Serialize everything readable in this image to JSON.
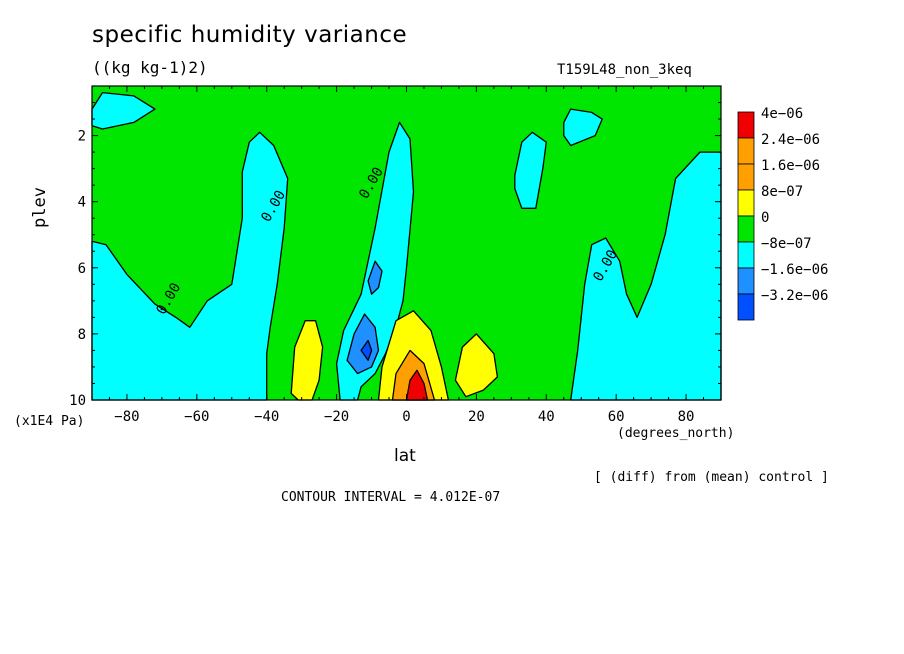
{
  "header": {
    "title": "specific humidity variance",
    "units": "((kg kg-1)2)",
    "run_id": "T159L48_non_3keq"
  },
  "footer": {
    "y_unit": "(x1E4 Pa)",
    "x_unit": "(degrees_north)",
    "diff_note": "[ (diff) from (mean) control ]",
    "contour_interval": "CONTOUR INTERVAL = 4.012E-07"
  },
  "colors": {
    "cyan": "#00ffff",
    "green": "#00e600",
    "yellow": "#ffff00",
    "orange": "#ffa000",
    "red": "#f00000",
    "blue_light": "#1e90ff",
    "blue_dark": "#0050ff"
  },
  "chart_data": {
    "type": "heatmap",
    "title": "specific humidity variance",
    "xlabel": "lat",
    "ylabel": "plev",
    "xlim": [
      -90,
      90
    ],
    "ylim": [
      10,
      0.5
    ],
    "x_ticks": [
      -80,
      -60,
      -40,
      -20,
      0,
      20,
      40,
      60,
      80
    ],
    "x_tick_labels": [
      "-80",
      "-60",
      "-40",
      "-20",
      "0",
      "20",
      "40",
      "60",
      "80"
    ],
    "y_ticks": [
      2,
      4,
      6,
      8,
      10
    ],
    "y_tick_labels": [
      "2",
      "4",
      "6",
      "8",
      "10"
    ],
    "contour_labels": [
      {
        "text": "0.00",
        "lat": -67,
        "plev": 7.0
      },
      {
        "text": "0.00",
        "lat": -37,
        "plev": 4.2
      },
      {
        "text": "0.00",
        "lat": -9,
        "plev": 3.5
      },
      {
        "text": "0.00",
        "lat": 58,
        "plev": 6.0
      }
    ],
    "legend": {
      "labels": [
        "4e-06",
        "2.4e-06",
        "1.6e-06",
        "8e-07",
        "0",
        "-8e-07",
        "-1.6e-06",
        "-3.2e-06"
      ],
      "colors": [
        "#f00000",
        "#ffa000",
        "#ffa000",
        "#ffff00",
        "#00e600",
        "#00ffff",
        "#1e90ff",
        "#0050ff"
      ]
    },
    "regions": [
      {
        "name": "negative-polar-south",
        "level": "cyan",
        "points": [
          [
            -90,
            10
          ],
          [
            -90,
            5.2
          ],
          [
            -86,
            5.3
          ],
          [
            -80,
            6.2
          ],
          [
            -72,
            7.1
          ],
          [
            -66,
            7.5
          ],
          [
            -62,
            7.8
          ],
          [
            -57,
            7.0
          ],
          [
            -50,
            6.5
          ],
          [
            -47,
            4.5
          ],
          [
            -47,
            3.1
          ],
          [
            -45,
            2.2
          ],
          [
            -42,
            1.9
          ],
          [
            -38,
            2.3
          ],
          [
            -34,
            3.3
          ],
          [
            -35,
            4.8
          ],
          [
            -37,
            6.5
          ],
          [
            -39,
            7.8
          ],
          [
            -40,
            8.6
          ],
          [
            -40,
            10
          ]
        ]
      },
      {
        "name": "negative-top-south",
        "level": "cyan",
        "points": [
          [
            -90,
            1.2
          ],
          [
            -87,
            0.7
          ],
          [
            -78,
            0.8
          ],
          [
            -72,
            1.2
          ],
          [
            -78,
            1.6
          ],
          [
            -87,
            1.8
          ],
          [
            -90,
            1.7
          ]
        ]
      },
      {
        "name": "negative-central-plume",
        "level": "cyan",
        "points": [
          [
            -19,
            10
          ],
          [
            -20,
            8.9
          ],
          [
            -18,
            7.9
          ],
          [
            -13,
            6.8
          ],
          [
            -9,
            4.8
          ],
          [
            -5,
            2.5
          ],
          [
            -2,
            1.6
          ],
          [
            1,
            2.1
          ],
          [
            2,
            3.7
          ],
          [
            0,
            6.0
          ],
          [
            -1,
            7.0
          ],
          [
            -3,
            7.8
          ],
          [
            -6,
            8.6
          ],
          [
            -9,
            9.2
          ],
          [
            -13,
            9.6
          ],
          [
            -14,
            10
          ]
        ]
      },
      {
        "name": "negative-mid-north",
        "level": "cyan",
        "points": [
          [
            31,
            3.2
          ],
          [
            33,
            2.2
          ],
          [
            36,
            1.9
          ],
          [
            40,
            2.2
          ],
          [
            39,
            3.0
          ],
          [
            37,
            4.2
          ],
          [
            33,
            4.2
          ],
          [
            31,
            3.6
          ]
        ]
      },
      {
        "name": "negative-top-north",
        "level": "cyan",
        "points": [
          [
            45,
            1.6
          ],
          [
            47,
            1.2
          ],
          [
            53,
            1.3
          ],
          [
            56,
            1.5
          ],
          [
            54,
            2.0
          ],
          [
            47,
            2.3
          ],
          [
            45,
            2.0
          ]
        ]
      },
      {
        "name": "negative-polar-north",
        "level": "cyan",
        "points": [
          [
            47,
            10
          ],
          [
            49,
            8.5
          ],
          [
            51,
            6.5
          ],
          [
            53,
            5.3
          ],
          [
            57,
            5.1
          ],
          [
            61,
            5.8
          ],
          [
            63,
            6.8
          ],
          [
            66,
            7.5
          ],
          [
            70,
            6.5
          ],
          [
            74,
            5.0
          ],
          [
            77,
            3.3
          ],
          [
            84,
            2.5
          ],
          [
            90,
            2.5
          ],
          [
            90,
            10
          ]
        ]
      },
      {
        "name": "negative-blue-core",
        "level": "blue_light",
        "points": [
          [
            -17,
            8.8
          ],
          [
            -15,
            8.0
          ],
          [
            -12,
            7.4
          ],
          [
            -9,
            7.8
          ],
          [
            -8,
            8.5
          ],
          [
            -10,
            9.0
          ],
          [
            -14,
            9.2
          ]
        ]
      },
      {
        "name": "negative-blue-upper",
        "level": "blue_light",
        "points": [
          [
            -11,
            6.4
          ],
          [
            -9,
            5.8
          ],
          [
            -7,
            6.1
          ],
          [
            -8,
            6.6
          ],
          [
            -10,
            6.8
          ]
        ]
      },
      {
        "name": "negative-dark-core",
        "level": "blue_dark",
        "points": [
          [
            -13,
            8.5
          ],
          [
            -11,
            8.2
          ],
          [
            -10,
            8.5
          ],
          [
            -11,
            8.8
          ]
        ]
      },
      {
        "name": "positive-left-plume",
        "level": "yellow",
        "points": [
          [
            -33,
            9.8
          ],
          [
            -32,
            8.4
          ],
          [
            -29,
            7.6
          ],
          [
            -26,
            7.6
          ],
          [
            -24,
            8.4
          ],
          [
            -25,
            9.4
          ],
          [
            -27,
            10
          ],
          [
            -31,
            10
          ]
        ]
      },
      {
        "name": "positive-center-plume",
        "level": "yellow",
        "points": [
          [
            -8,
            10
          ],
          [
            -7,
            9.0
          ],
          [
            -3,
            7.6
          ],
          [
            2,
            7.3
          ],
          [
            7,
            7.9
          ],
          [
            10,
            9.0
          ],
          [
            12,
            10
          ]
        ]
      },
      {
        "name": "positive-right-plume",
        "level": "yellow",
        "points": [
          [
            14,
            9.4
          ],
          [
            16,
            8.4
          ],
          [
            20,
            8.0
          ],
          [
            25,
            8.6
          ],
          [
            26,
            9.3
          ],
          [
            22,
            9.7
          ],
          [
            17,
            9.9
          ]
        ]
      },
      {
        "name": "positive-center-orange",
        "level": "orange",
        "points": [
          [
            -4,
            10
          ],
          [
            -3,
            9.2
          ],
          [
            1,
            8.5
          ],
          [
            5,
            8.9
          ],
          [
            8,
            10
          ]
        ]
      },
      {
        "name": "positive-center-red",
        "level": "red",
        "points": [
          [
            0,
            10
          ],
          [
            1,
            9.4
          ],
          [
            3,
            9.1
          ],
          [
            5,
            9.5
          ],
          [
            6,
            10
          ]
        ]
      }
    ]
  }
}
